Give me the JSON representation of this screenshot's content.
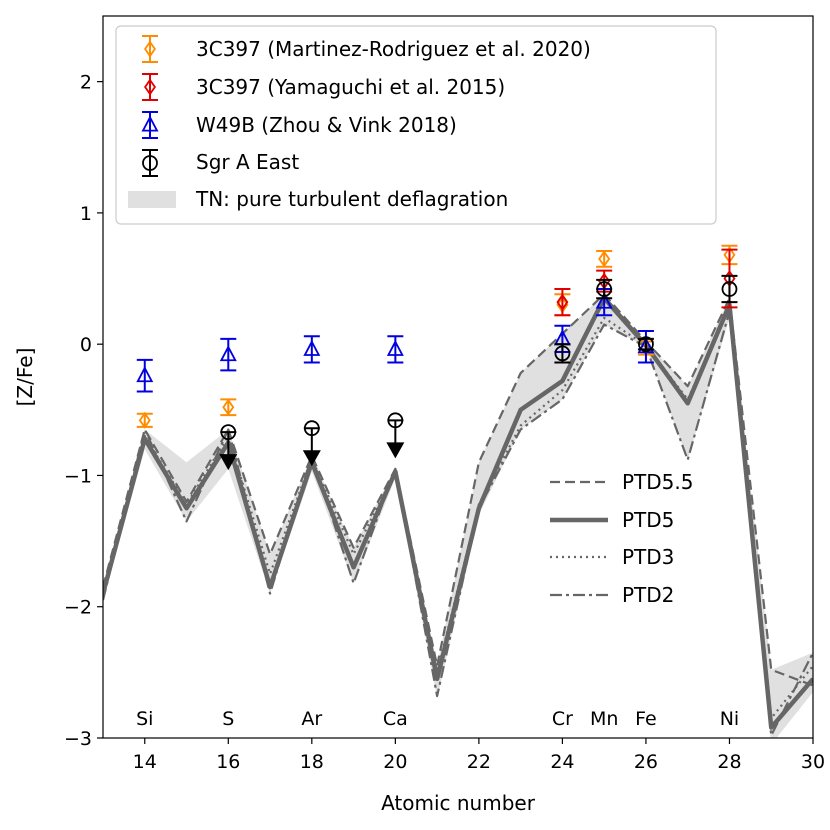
{
  "chart_data": {
    "type": "scatter",
    "xlabel": "Atomic number",
    "ylabel": "[Z/Fe]",
    "xlim": [
      13,
      30
    ],
    "ylim": [
      -3,
      2.5
    ],
    "xticks": [
      14,
      16,
      18,
      20,
      22,
      24,
      26,
      28,
      30
    ],
    "xtick_labels": [
      "14",
      "16",
      "18",
      "20",
      "22",
      "24",
      "26",
      "28",
      "30"
    ],
    "yticks": [
      -3,
      -2,
      -1,
      0,
      1,
      2
    ],
    "ytick_labels": [
      "−3",
      "−2",
      "−1",
      "0",
      "1",
      "2"
    ],
    "grid": false,
    "legend_position": "top",
    "element_labels": [
      {
        "z": 14,
        "label": "Si"
      },
      {
        "z": 16,
        "label": "S"
      },
      {
        "z": 18,
        "label": "Ar"
      },
      {
        "z": 20,
        "label": "Ca"
      },
      {
        "z": 24,
        "label": "Cr"
      },
      {
        "z": 25,
        "label": "Mn"
      },
      {
        "z": 26,
        "label": "Fe"
      },
      {
        "z": 28,
        "label": "Ni"
      }
    ],
    "band": {
      "name": "TN: pure turbulent deflagration",
      "color": "#e0e0e0",
      "x": [
        13,
        14,
        15,
        16,
        17,
        18,
        19,
        20,
        21,
        22,
        23,
        24,
        25,
        26,
        27,
        28,
        29,
        30
      ],
      "upper": [
        -1.85,
        -0.65,
        -0.9,
        -0.65,
        -1.6,
        -0.85,
        -1.55,
        -0.95,
        -2.45,
        -0.9,
        -0.22,
        0.08,
        0.38,
        0.02,
        -0.32,
        0.35,
        -2.48,
        -2.35
      ],
      "lower": [
        -1.95,
        -0.8,
        -1.35,
        -0.95,
        -1.9,
        -0.97,
        -1.82,
        -1.02,
        -2.7,
        -1.3,
        -0.65,
        -0.42,
        0.15,
        -0.02,
        -0.88,
        0.2,
        -3.05,
        -2.65
      ]
    },
    "models": [
      {
        "name": "PTD5.5",
        "style": "dashed",
        "y": [
          -1.85,
          -0.65,
          -1.2,
          -0.65,
          -1.6,
          -0.85,
          -1.55,
          -0.95,
          -2.45,
          -0.9,
          -0.22,
          0.08,
          0.38,
          0.02,
          -0.32,
          0.35,
          -2.48,
          -2.6
        ]
      },
      {
        "name": "PTD5",
        "style": "solid",
        "y": [
          -1.9,
          -0.72,
          -1.25,
          -0.75,
          -1.85,
          -0.9,
          -1.7,
          -0.97,
          -2.55,
          -1.25,
          -0.5,
          -0.28,
          0.35,
          -0.01,
          -0.45,
          0.3,
          -2.92,
          -2.55
        ]
      },
      {
        "name": "PTD3",
        "style": "dotted",
        "y": [
          -1.9,
          -0.7,
          -1.22,
          -0.7,
          -1.75,
          -0.87,
          -1.6,
          -0.97,
          -2.5,
          -1.22,
          -0.62,
          -0.35,
          0.2,
          -0.01,
          -0.42,
          0.28,
          -2.85,
          -2.45
        ]
      },
      {
        "name": "PTD2",
        "style": "dashdot",
        "y": [
          -1.95,
          -0.65,
          -1.35,
          -0.65,
          -1.9,
          -0.85,
          -1.82,
          -0.95,
          -2.68,
          -1.25,
          -0.65,
          -0.42,
          0.15,
          -0.02,
          -0.88,
          0.25,
          -2.98,
          -2.35
        ]
      }
    ],
    "series": [
      {
        "name": "3C397 (Martinez-Rodriguez et al. 2020)",
        "marker": "diamond",
        "color": "#ff8c00",
        "points": [
          {
            "x": 14,
            "y": -0.58,
            "err": 0.05
          },
          {
            "x": 16,
            "y": -0.48,
            "err": 0.06
          },
          {
            "x": 24,
            "y": 0.3,
            "err": 0.08
          },
          {
            "x": 25,
            "y": 0.65,
            "err": 0.06
          },
          {
            "x": 26,
            "y": -0.03,
            "err": 0.05
          },
          {
            "x": 28,
            "y": 0.68,
            "err": 0.07
          }
        ]
      },
      {
        "name": "3C397 (Yamaguchi et al. 2015)",
        "marker": "diamond",
        "color": "#e00000",
        "points": [
          {
            "x": 24,
            "y": 0.32,
            "err": 0.1
          },
          {
            "x": 25,
            "y": 0.48,
            "err": 0.08
          },
          {
            "x": 28,
            "y": 0.5,
            "err": 0.22
          }
        ]
      },
      {
        "name": "W49B (Zhou & Vink 2018)",
        "marker": "triangle",
        "color": "#0000e0",
        "points": [
          {
            "x": 14,
            "y": -0.24,
            "err": 0.12
          },
          {
            "x": 16,
            "y": -0.08,
            "err": 0.12
          },
          {
            "x": 18,
            "y": -0.04,
            "err": 0.1
          },
          {
            "x": 20,
            "y": -0.04,
            "err": 0.1
          },
          {
            "x": 24,
            "y": 0.04,
            "err": 0.1
          },
          {
            "x": 25,
            "y": 0.32,
            "err": 0.1
          },
          {
            "x": 26,
            "y": -0.02,
            "err": 0.12
          }
        ]
      },
      {
        "name": "Sgr A East",
        "marker": "circle",
        "color": "#000000",
        "points": [
          {
            "x": 16,
            "y": -0.67,
            "upper_limit": true
          },
          {
            "x": 18,
            "y": -0.64,
            "upper_limit": true
          },
          {
            "x": 20,
            "y": -0.58,
            "upper_limit": true
          },
          {
            "x": 24,
            "y": -0.07,
            "err": 0.07
          },
          {
            "x": 25,
            "y": 0.42,
            "err": 0.07
          },
          {
            "x": 26,
            "y": 0.0,
            "err": 0.04
          },
          {
            "x": 28,
            "y": 0.42,
            "err": 0.1
          }
        ]
      }
    ]
  }
}
